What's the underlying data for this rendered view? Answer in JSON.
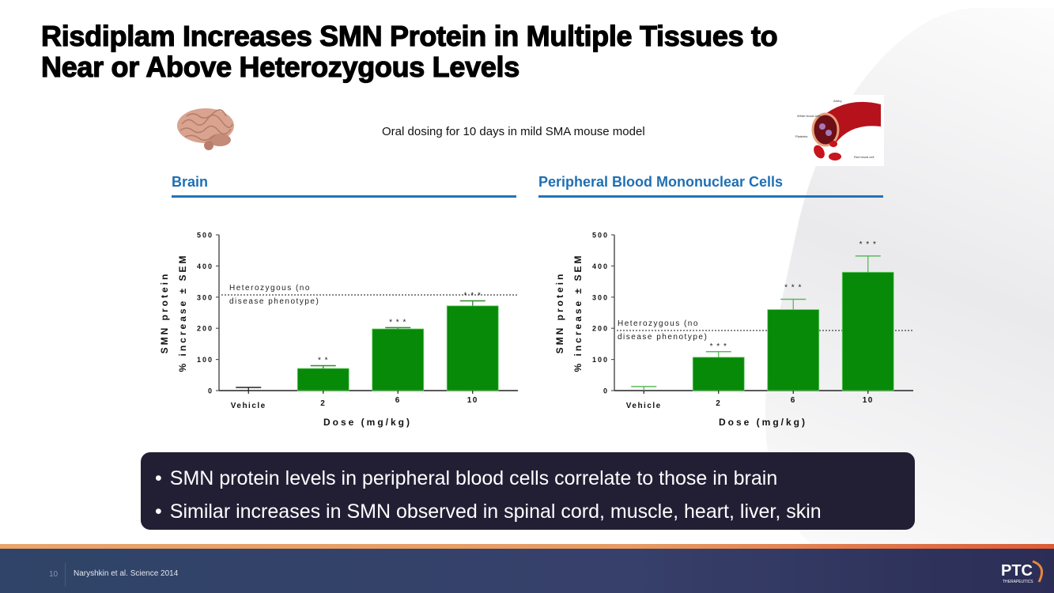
{
  "slide": {
    "title": "Risdiplam Increases SMN Protein in Multiple Tissues to Near or Above Heterozygous Levels",
    "title_line1": "Risdiplam Increases SMN Protein in Multiple Tissues to",
    "title_line2": "Near or Above Heterozygous Levels",
    "subtitle": "Oral dosing for 10 days in mild SMA mouse model",
    "page_number": "10",
    "citation": "Naryshkin et al. Science 2014",
    "logo_text": "PTC",
    "logo_subtext": "THERAPEUTICS",
    "blood_image_labels": [
      "Artery",
      "White blood cells",
      "Platelets",
      "Red blood cell"
    ]
  },
  "panels": [
    {
      "heading": "Brain"
    },
    {
      "heading": "Peripheral Blood Mononuclear Cells"
    }
  ],
  "callout": {
    "bullets": [
      "SMN protein levels in peripheral blood cells correlate to those in brain",
      "Similar increases in SMN observed in spinal cord, muscle, heart, liver, skin"
    ]
  },
  "colors": {
    "bar": "#078a07",
    "error_bar": "#5cb85c",
    "heading_blue": "#1f6fb4",
    "callout_bg": "#221f35"
  },
  "chart_data": [
    {
      "type": "bar",
      "title": "Brain",
      "categories": [
        "Vehicle",
        "2",
        "6",
        "10"
      ],
      "values": [
        0,
        71,
        198,
        272
      ],
      "errors_upper": [
        10,
        80,
        202,
        288
      ],
      "significance": [
        "",
        "**",
        "***",
        "***"
      ],
      "xlabel": "Dose (mg/kg)",
      "ylabel_line1": "SMN protein",
      "ylabel_line2": "% increase ± SEM",
      "ylim": [
        0,
        500
      ],
      "yticks": [
        0,
        100,
        200,
        300,
        400,
        500
      ],
      "reference_line": {
        "value": 307,
        "label_line1": "Heterozygous (no",
        "label_line2": "disease phenotype)",
        "style": "dotted"
      },
      "grid": false
    },
    {
      "type": "bar",
      "title": "Peripheral Blood Mononuclear Cells",
      "categories": [
        "Vehicle",
        "2",
        "6",
        "10"
      ],
      "values": [
        0,
        107,
        260,
        380
      ],
      "errors_upper": [
        13,
        125,
        293,
        432
      ],
      "significance": [
        "",
        "***",
        "***",
        "***"
      ],
      "xlabel": "Dose (mg/kg)",
      "ylabel_line1": "SMN protein",
      "ylabel_line2": "% increase ± SEM",
      "ylim": [
        0,
        500
      ],
      "yticks": [
        0,
        100,
        200,
        300,
        400,
        500
      ],
      "reference_line": {
        "value": 193,
        "label_line1": "Heterozygous (no",
        "label_line2": "disease phenotype)",
        "style": "dotted"
      },
      "grid": false
    }
  ]
}
